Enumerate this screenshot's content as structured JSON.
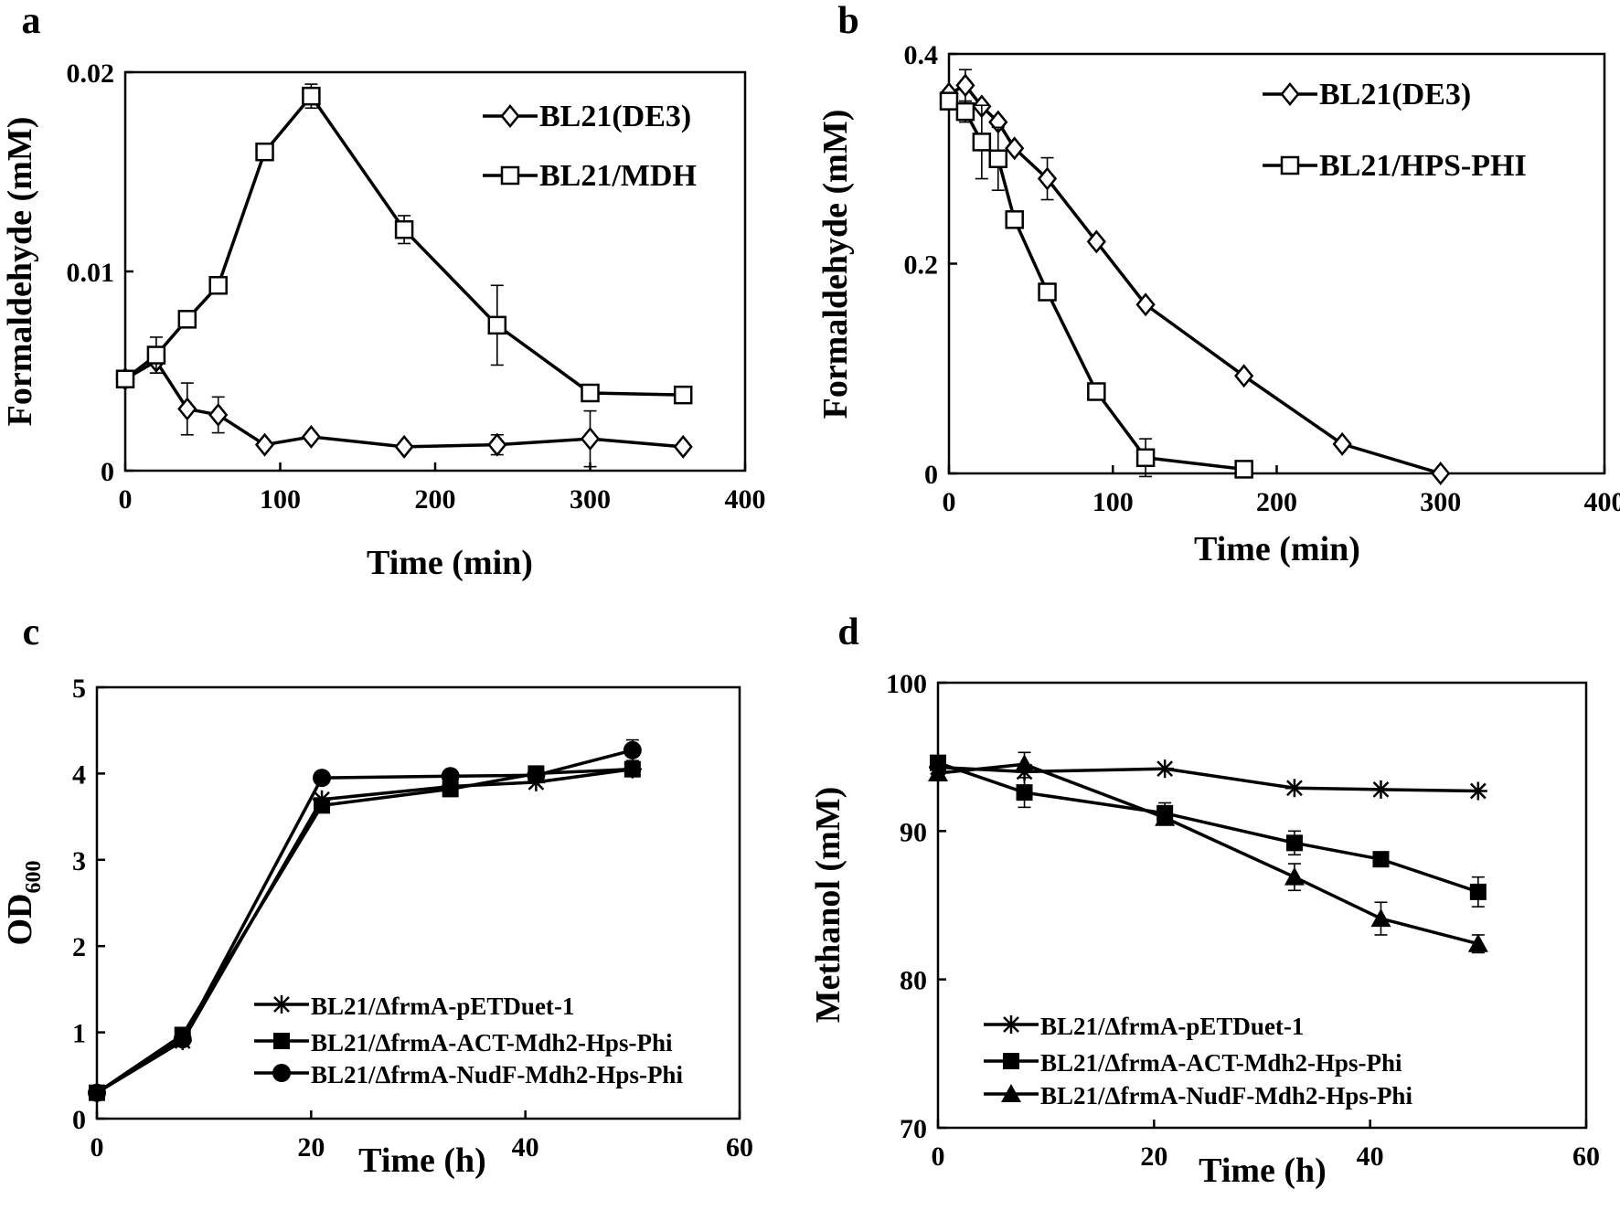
{
  "chart_data": [
    {
      "type": "line",
      "panel": "a",
      "xlabel": "Time (min)",
      "ylabel": "Formaldehyde (mM)",
      "xlim": [
        0,
        400
      ],
      "ylim": [
        0,
        0.02
      ],
      "xticks": [
        0,
        100,
        200,
        300,
        400
      ],
      "yticks": [
        0,
        0.01,
        0.02
      ],
      "xtick_labels": [
        "0",
        "100",
        "200",
        "300",
        "400"
      ],
      "ytick_labels": [
        "0",
        "0.01",
        "0.02"
      ],
      "legend_position": "top-right",
      "series": [
        {
          "name": "BL21(DE3)",
          "marker": "diamond",
          "x": [
            0,
            20,
            40,
            60,
            90,
            120,
            180,
            240,
            300,
            360
          ],
          "values": [
            0.0046,
            0.0055,
            0.0031,
            0.0028,
            0.0013,
            0.0017,
            0.0012,
            0.0013,
            0.0016,
            0.0012
          ],
          "errors": [
            0,
            0.0006,
            0.0013,
            0.0009,
            0,
            0,
            0,
            0.0005,
            0.0014,
            0
          ]
        },
        {
          "name": "BL21/MDH",
          "marker": "square",
          "x": [
            0,
            20,
            40,
            60,
            90,
            120,
            180,
            240,
            300,
            360
          ],
          "values": [
            0.0046,
            0.0058,
            0.0076,
            0.0093,
            0.016,
            0.0188,
            0.0121,
            0.0073,
            0.0039,
            0.0038
          ],
          "errors": [
            0,
            0.0009,
            0,
            0,
            0,
            0.0006,
            0.0007,
            0.002,
            0,
            0
          ]
        }
      ]
    },
    {
      "type": "line",
      "panel": "b",
      "xlabel": "Time (min)",
      "ylabel": "Formaldehyde (mM)",
      "xlim": [
        0,
        400
      ],
      "ylim": [
        0,
        0.4
      ],
      "xticks": [
        0,
        100,
        200,
        300,
        400
      ],
      "yticks": [
        0,
        0.2,
        0.4
      ],
      "xtick_labels": [
        "0",
        "100",
        "200",
        "300",
        "400"
      ],
      "ytick_labels": [
        "0",
        "0.2",
        "0.4"
      ],
      "legend_position": "top-right",
      "series": [
        {
          "name": "BL21(DE3)",
          "marker": "diamond",
          "x": [
            0,
            10,
            20,
            30,
            40,
            60,
            90,
            120,
            180,
            240,
            300
          ],
          "values": [
            0.362,
            0.37,
            0.35,
            0.335,
            0.31,
            0.281,
            0.221,
            0.161,
            0.093,
            0.028,
            0.0
          ],
          "errors": [
            0,
            0.015,
            0,
            0,
            0,
            0.02,
            0,
            0,
            0,
            0,
            0
          ]
        },
        {
          "name": "BL21/HPS-PHI",
          "marker": "square",
          "x": [
            0,
            10,
            20,
            30,
            40,
            60,
            90,
            120,
            180
          ],
          "values": [
            0.355,
            0.345,
            0.316,
            0.3,
            0.242,
            0.173,
            0.078,
            0.015,
            0.004
          ],
          "errors": [
            0,
            0.01,
            0.035,
            0.03,
            0,
            0,
            0,
            0.018,
            0.006
          ]
        }
      ]
    },
    {
      "type": "line",
      "panel": "c",
      "xlabel": "Time (h)",
      "ylabel": "OD",
      "ylabel_sub": "600",
      "xlim": [
        0,
        60
      ],
      "ylim": [
        0,
        5
      ],
      "xticks": [
        0,
        20,
        40,
        60
      ],
      "yticks": [
        0,
        1,
        2,
        3,
        4,
        5
      ],
      "xtick_labels": [
        "0",
        "20",
        "40",
        "60"
      ],
      "ytick_labels": [
        "0",
        "1",
        "2",
        "3",
        "4",
        "5"
      ],
      "legend_position": "bottom-right",
      "series": [
        {
          "name": "BL21/ΔfrmA-pETDuet-1",
          "marker": "star",
          "x": [
            0,
            8,
            21,
            33,
            41,
            50
          ],
          "values": [
            0.3,
            0.9,
            3.7,
            3.85,
            3.9,
            4.05
          ],
          "errors": [
            0,
            0,
            0,
            0,
            0,
            0
          ]
        },
        {
          "name": "BL21/ΔfrmA-ACT-Mdh2-Hps-Phi",
          "marker": "square-filled",
          "x": [
            0,
            8,
            21,
            33,
            41,
            50
          ],
          "values": [
            0.3,
            0.97,
            3.63,
            3.82,
            4.0,
            4.05
          ],
          "errors": [
            0,
            0,
            0,
            0,
            0,
            0
          ]
        },
        {
          "name": "BL21/ΔfrmA-NudF-Mdh2-Hps-Phi",
          "marker": "circle-filled",
          "x": [
            0,
            8,
            21,
            33,
            41,
            50
          ],
          "values": [
            0.3,
            0.92,
            3.95,
            3.97,
            3.98,
            4.27
          ],
          "errors": [
            0,
            0,
            0,
            0,
            0,
            0.12
          ]
        }
      ]
    },
    {
      "type": "line",
      "panel": "d",
      "xlabel": "Time (h)",
      "ylabel": "Methanol (mM)",
      "xlim": [
        0,
        60
      ],
      "ylim": [
        70,
        100
      ],
      "xticks": [
        0,
        20,
        40,
        60
      ],
      "yticks": [
        70,
        80,
        90,
        100
      ],
      "xtick_labels": [
        "0",
        "20",
        "40",
        "60"
      ],
      "ytick_labels": [
        "70",
        "80",
        "90",
        "100"
      ],
      "legend_position": "bottom-left",
      "series": [
        {
          "name": "BL21/ΔfrmA-pETDuet-1",
          "marker": "star",
          "x": [
            0,
            8,
            21,
            33,
            41,
            50
          ],
          "values": [
            94.3,
            94.0,
            94.2,
            92.9,
            92.8,
            92.7
          ],
          "errors": [
            0,
            1.3,
            0,
            0,
            0,
            0
          ]
        },
        {
          "name": "BL21/ΔfrmA-ACT-Mdh2-Hps-Phi",
          "marker": "square-filled",
          "x": [
            0,
            8,
            21,
            33,
            41,
            50
          ],
          "values": [
            94.6,
            92.6,
            91.2,
            89.2,
            88.1,
            85.9
          ],
          "errors": [
            0,
            1.0,
            0.7,
            0.8,
            0,
            1.0
          ]
        },
        {
          "name": "BL21/ΔfrmA-NudF-Mdh2-Hps-Phi",
          "marker": "triangle-filled",
          "x": [
            0,
            8,
            21,
            33,
            41,
            50
          ],
          "values": [
            93.9,
            94.5,
            90.9,
            86.9,
            84.1,
            82.4
          ],
          "errors": [
            0,
            0,
            0,
            0.9,
            1.1,
            0.6
          ]
        }
      ]
    }
  ]
}
